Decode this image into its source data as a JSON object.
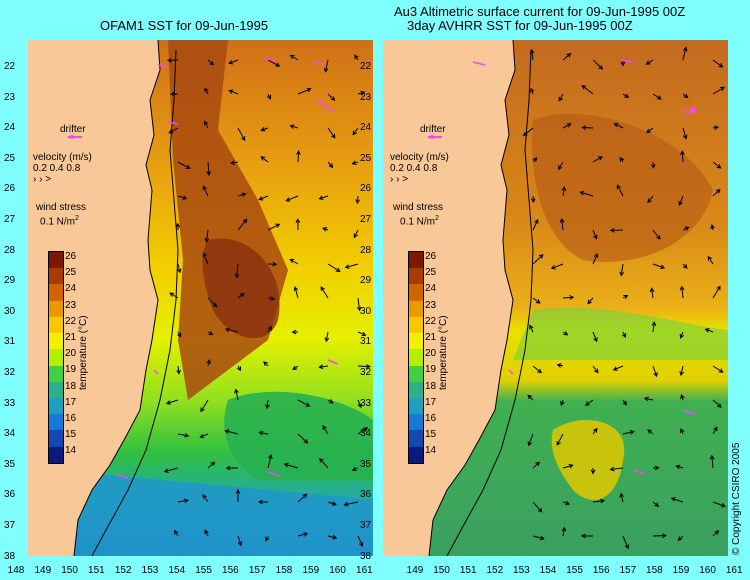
{
  "titles": {
    "left": "OFAM1 SST for 09-Jun-1995",
    "right_line1": "Au3 Altimetric surface current for 09-Jun-1995 00Z",
    "right_line2": "3day AVHRR SST for 09-Jun-1995 00Z"
  },
  "latitude_labels": [
    "22",
    "23",
    "24",
    "25",
    "26",
    "27",
    "28",
    "29",
    "30",
    "31",
    "32",
    "33",
    "34",
    "35",
    "36",
    "37",
    "38"
  ],
  "longitude_labels_left": [
    "148",
    "149",
    "150",
    "151",
    "152",
    "153",
    "154",
    "155",
    "156",
    "157",
    "158",
    "159",
    "160",
    "161"
  ],
  "longitude_labels_right": [
    "149",
    "150",
    "151",
    "152",
    "153",
    "154",
    "155",
    "156",
    "157",
    "158",
    "159",
    "160",
    "161"
  ],
  "legend": {
    "drifter": "drifter",
    "velocity_title": "velocity (m/s)",
    "velocity_values": "0.2 0.4 0.8",
    "wind_title": "wind stress",
    "wind_value": "0.1 N/m",
    "wind_sup": "2"
  },
  "colorbar": {
    "ticks": [
      "26",
      "25",
      "24",
      "23",
      "22",
      "21",
      "20",
      "19",
      "18",
      "17",
      "16",
      "15",
      "14"
    ],
    "title": "temperature (°C)",
    "colors": [
      "#7a1a00",
      "#a83c00",
      "#d06400",
      "#e89a00",
      "#f5c800",
      "#f2f000",
      "#b4ee00",
      "#40d040",
      "#2eb088",
      "#20a0c0",
      "#1878d8",
      "#1448b0",
      "#0c1a80"
    ]
  },
  "copyright": "© Copyright CSIRO 2005",
  "colors": {
    "background": "#80ffff",
    "land": "#f8c898",
    "coast": "#000000",
    "drifter": "#ff40ff"
  },
  "icons": [
    "arrow-icon",
    "drifter-icon"
  ]
}
